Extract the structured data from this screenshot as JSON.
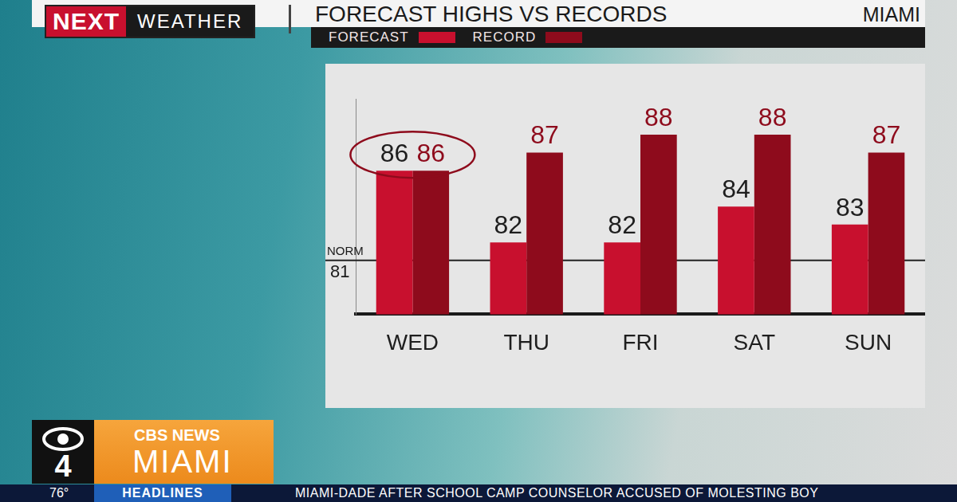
{
  "branding": {
    "logo": [
      "NEXT",
      "WEATHER"
    ],
    "location": "MIAMI"
  },
  "chart_data": {
    "type": "bar",
    "title": "FORECAST HIGHS VS RECORDS",
    "categories": [
      "WED",
      "THU",
      "FRI",
      "SAT",
      "SUN"
    ],
    "series": [
      {
        "name": "FORECAST",
        "color": "#c8102e",
        "values": [
          86,
          82,
          82,
          84,
          83
        ]
      },
      {
        "name": "RECORD",
        "color": "#8e0b1c",
        "values": [
          86,
          87,
          88,
          88,
          87
        ]
      }
    ],
    "ylim": [
      78,
      90
    ],
    "grid": false,
    "legend": "top",
    "data_labels": true,
    "tick_labels": "x",
    "reference_line": {
      "label": "NORM",
      "value": 81
    }
  },
  "station": {
    "channel": "4",
    "network": "CBS NEWS",
    "city": "MIAMI"
  },
  "ticker": {
    "temperature": "76°",
    "label": "HEADLINES",
    "text": "MIAMI-DADE AFTER SCHOOL CAMP COUNSELOR ACCUSED OF MOLESTING BOY"
  }
}
